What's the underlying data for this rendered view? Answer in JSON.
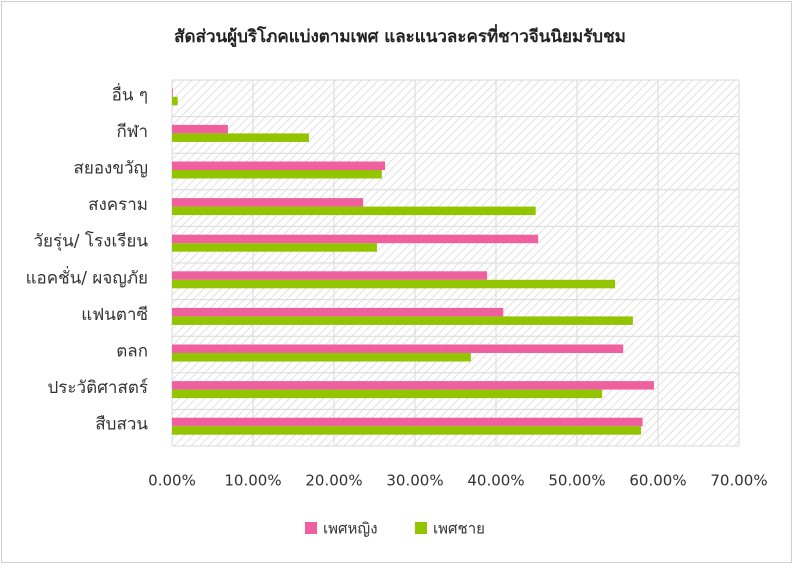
{
  "chart_data": {
    "type": "hbar",
    "title": "สัดส่วนผู้บริโภคแบ่งตามเพศ และแนวละครที่ชาวจีนนิยมรับชม",
    "categories": [
      "อื่น ๆ",
      "กีฬา",
      "สยองขวัญ",
      "สงคราม",
      "วัยรุ่น/ โรงเรียน",
      "แอคชั่น/ ผจญภัย",
      "แฟนตาซี",
      "ตลก",
      "ประวัติศาสตร์",
      "สืบสวน"
    ],
    "series": [
      {
        "name": "เพศหญิง",
        "color": "#f0609e",
        "values": [
          0.1,
          6.9,
          26.3,
          23.6,
          45.2,
          38.9,
          40.9,
          55.7,
          59.5,
          58.1
        ]
      },
      {
        "name": "เพศชาย",
        "color": "#92c400",
        "values": [
          0.7,
          16.9,
          25.9,
          44.9,
          25.3,
          54.7,
          56.9,
          36.9,
          53.1,
          57.9
        ]
      }
    ],
    "xlim": [
      0,
      70
    ],
    "xticks": [
      {
        "value": 0,
        "label": "0.00%"
      },
      {
        "value": 10,
        "label": "10.00%"
      },
      {
        "value": 20,
        "label": "20.00%"
      },
      {
        "value": 30,
        "label": "30.00%"
      },
      {
        "value": 40,
        "label": "40.00%"
      },
      {
        "value": 50,
        "label": "50.00%"
      },
      {
        "value": 60,
        "label": "60.00%"
      },
      {
        "value": 70,
        "label": "70.00%"
      }
    ],
    "grid": true,
    "legend": "bottom"
  }
}
